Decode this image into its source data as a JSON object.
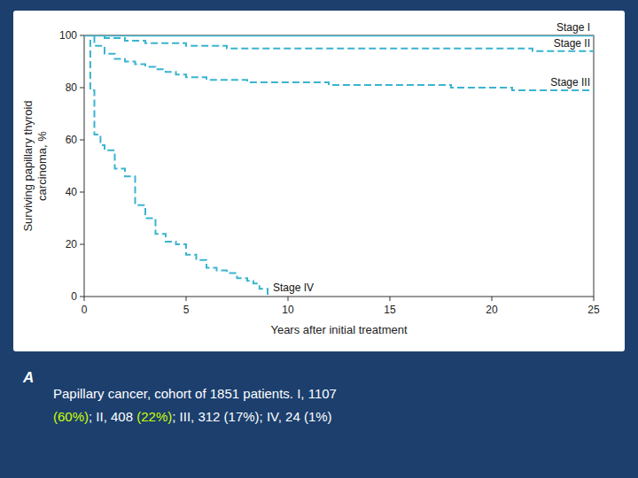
{
  "chart_data": {
    "type": "step",
    "color": "#3ab4d0",
    "x_label": "Years after initial treatment",
    "y_label": "Surviving papillary thyroid\ncarcinoma, %",
    "xlim": [
      0,
      25
    ],
    "ylim": [
      0,
      100
    ],
    "xticks": [
      0,
      5,
      10,
      15,
      20,
      25
    ],
    "yticks": [
      0,
      20,
      40,
      60,
      80,
      100
    ],
    "grid": false,
    "annotations": [
      "A",
      "Papillary cancer, cohort of 1851 patients. I, 1107",
      "(60%)",
      "; II, 408 ",
      "(22%)",
      "; III, 312 (17%); IV, 24 (1%)"
    ],
    "series": [
      {
        "name": "Stage I",
        "line_style": "solid",
        "x": [
          0,
          25
        ],
        "values": [
          100,
          100
        ]
      },
      {
        "name": "Stage II",
        "line_style": "dashed",
        "x": [
          0,
          1,
          2,
          3,
          4,
          5,
          6,
          7,
          8,
          9,
          10,
          11,
          13,
          15,
          17,
          20,
          22,
          24,
          25
        ],
        "values": [
          100,
          99,
          98,
          97,
          97,
          96,
          96,
          95,
          95,
          95,
          95,
          95,
          95,
          95,
          95,
          95,
          94,
          94,
          94
        ]
      },
      {
        "name": "Stage III",
        "line_style": "dashed",
        "x": [
          0,
          0.5,
          1,
          1.5,
          2,
          2.5,
          3,
          3.5,
          4,
          4.5,
          5,
          6,
          7,
          8,
          9,
          10,
          11,
          12,
          13,
          14,
          15,
          16,
          17,
          18,
          19,
          20,
          21,
          22,
          23,
          24,
          25
        ],
        "values": [
          100,
          96,
          93,
          91,
          90,
          89,
          88,
          87,
          86,
          85,
          84,
          83,
          83,
          82,
          82,
          82,
          82,
          81,
          81,
          81,
          81,
          81,
          81,
          80,
          80,
          80,
          79,
          79,
          79,
          79,
          79
        ]
      },
      {
        "name": "Stage IV",
        "line_style": "dashed",
        "x": [
          0,
          0.3,
          0.5,
          0.8,
          1,
          1.5,
          2,
          2.5,
          3,
          3.5,
          4,
          4.5,
          5,
          5.5,
          6,
          6.5,
          7,
          7.5,
          8,
          8.3,
          8.6,
          9
        ],
        "values": [
          100,
          79,
          62,
          58,
          56,
          49,
          46,
          35,
          30,
          24,
          21,
          20,
          16,
          14,
          11,
          10,
          9,
          7,
          6,
          5,
          3,
          0
        ]
      }
    ]
  }
}
